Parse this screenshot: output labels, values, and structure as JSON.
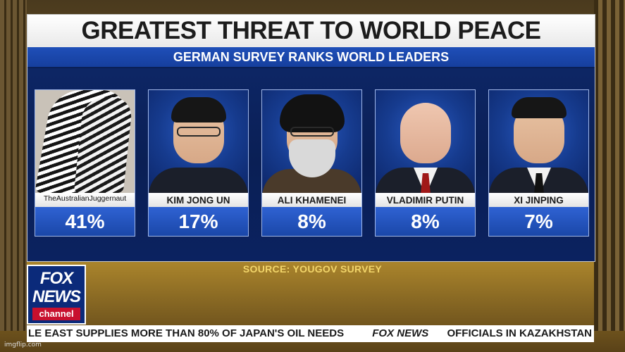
{
  "title": "GREATEST THREAT TO WORLD PEACE",
  "subtitle": "GERMAN SURVEY RANKS WORLD LEADERS",
  "cards": [
    {
      "name": "",
      "watermark": "TheAustralianJuggernaut",
      "percent": "41%"
    },
    {
      "name": "KIM JONG UN",
      "percent": "17%"
    },
    {
      "name": "ALI KHAMENEI",
      "percent": "8%"
    },
    {
      "name": "VLADIMIR PUTIN",
      "percent": "8%"
    },
    {
      "name": "XI JINPING",
      "percent": "7%"
    }
  ],
  "source": "SOURCE: YOUGOV SURVEY",
  "logo": {
    "line1": "FOX",
    "line2": "NEWS",
    "line3": "channel"
  },
  "ticker": {
    "left": "LE EAST SUPPLIES MORE THAN 80% OF JAPAN'S OIL NEEDS",
    "logo": "FOX NEWS",
    "right": "OFFICIALS IN KAZAKHSTAN SA"
  },
  "footer_watermark": "imgflip.com",
  "colors": {
    "board": "#0a1f55",
    "pct_band": "#2357c4",
    "source_text": "#f2d56a",
    "channel_red": "#c8102e"
  }
}
